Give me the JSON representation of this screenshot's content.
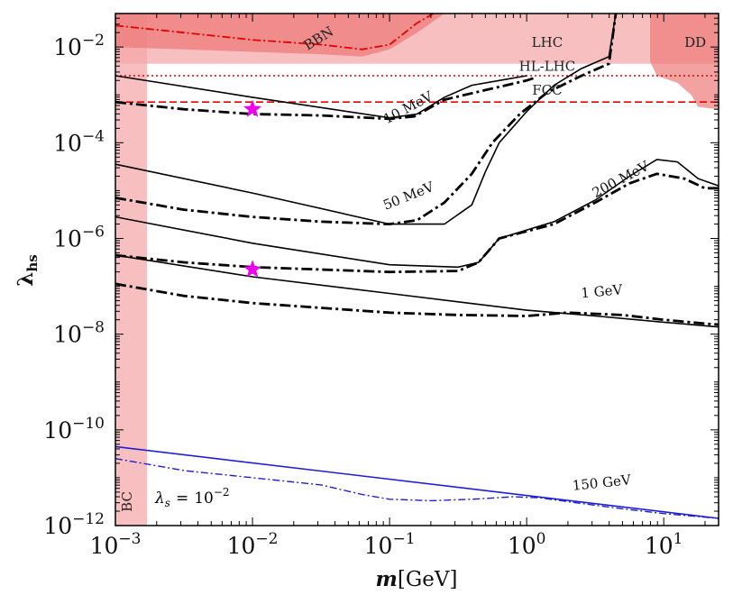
{
  "chart_data": {
    "type": "line",
    "xscale": "log",
    "yscale": "log",
    "xlim_log10": [
      -3,
      1.4
    ],
    "ylim_log10": [
      -12,
      -1.3
    ],
    "xlabel": {
      "symbol": "m",
      "unit": "[GeV]"
    },
    "ylabel": {
      "symbol": "λ",
      "subscript": "hs"
    },
    "x_ticks": [
      {
        "value": -3,
        "mantissa": "10",
        "exponent": "−3"
      },
      {
        "value": -2,
        "mantissa": "10",
        "exponent": "−2"
      },
      {
        "value": -1,
        "mantissa": "10",
        "exponent": "−1"
      },
      {
        "value": 0,
        "mantissa": "10",
        "exponent": "0"
      },
      {
        "value": 1,
        "mantissa": "10",
        "exponent": "1"
      }
    ],
    "y_ticks": [
      {
        "value": -2,
        "mantissa": "10",
        "exponent": "−2"
      },
      {
        "value": -4,
        "mantissa": "10",
        "exponent": "−4"
      },
      {
        "value": -6,
        "mantissa": "10",
        "exponent": "−6"
      },
      {
        "value": -8,
        "mantissa": "10",
        "exponent": "−8"
      },
      {
        "value": -10,
        "mantissa": "10",
        "exponent": "−10"
      },
      {
        "value": -12,
        "mantissa": "10",
        "exponent": "−12"
      }
    ],
    "annotation_lambda_s": {
      "symbol": "λ",
      "subscript": "s",
      "equals": "=",
      "mantissa": "10",
      "exponent": "−2"
    },
    "colors": {
      "region_fill": "#f4a6a6",
      "region_dark": "#ee7b7b",
      "constraint_red": "#e60000",
      "benchmark_black": "#000000",
      "benchmark_blue": "#1f1fd6",
      "marker": "#ee00ee"
    },
    "regions": [
      {
        "name": "LHC",
        "label": "LHC",
        "label_at": [
          0.15,
          -2.0
        ],
        "poly": [
          [
            -3,
            -2.35
          ],
          [
            1.4,
            -2.35
          ],
          [
            1.4,
            -1.3
          ],
          [
            -3,
            -1.3
          ]
        ]
      },
      {
        "name": "BC",
        "label": "BC",
        "label_at": [
          -2.88,
          -11.5
        ],
        "poly": [
          [
            -3,
            -12
          ],
          [
            -2.77,
            -12
          ],
          [
            -2.77,
            -1.3
          ],
          [
            -3,
            -1.3
          ]
        ]
      },
      {
        "name": "BBN",
        "label": "BBN",
        "label_at": [
          -1.5,
          -1.9
        ],
        "poly": [
          [
            -3,
            -1.3
          ],
          [
            -3,
            -2.0
          ],
          [
            -2.5,
            -2.05
          ],
          [
            -2.0,
            -2.1
          ],
          [
            -1.5,
            -2.15
          ],
          [
            -1.2,
            -2.2
          ],
          [
            -1.0,
            -2.05
          ],
          [
            -0.8,
            -1.7
          ],
          [
            -0.6,
            -1.3
          ]
        ]
      },
      {
        "name": "DD",
        "label": "DD",
        "label_at": [
          1.23,
          -2.0
        ],
        "poly": [
          [
            0.9,
            -1.3
          ],
          [
            0.9,
            -2.3
          ],
          [
            0.95,
            -2.6
          ],
          [
            1.1,
            -2.75
          ],
          [
            1.2,
            -3.0
          ],
          [
            1.25,
            -3.25
          ],
          [
            1.4,
            -3.3
          ],
          [
            1.4,
            -1.3
          ]
        ]
      }
    ],
    "reference_lines": [
      {
        "name": "HL-LHC",
        "label": "HL-LHC",
        "y": -2.6,
        "style": "dotted",
        "label_at": [
          0.15,
          -2.5
        ]
      },
      {
        "name": "FCC",
        "label": "FCC",
        "y": -3.15,
        "style": "dashed",
        "label_at": [
          0.15,
          -3.0
        ]
      }
    ],
    "bbn_dashdot": [
      [
        -3,
        -1.55
      ],
      [
        -2.5,
        -1.7
      ],
      [
        -2.0,
        -1.85
      ],
      [
        -1.5,
        -1.95
      ],
      [
        -1.2,
        -2.05
      ],
      [
        -1.0,
        -1.95
      ],
      [
        -0.8,
        -1.5
      ],
      [
        -0.68,
        -1.3
      ]
    ],
    "series": [
      {
        "name": "10 MeV",
        "label": "10 MeV",
        "color": "black",
        "label_at": [
          -0.85,
          -3.35
        ],
        "label_rot": -28,
        "solid": [
          [
            -3,
            -2.6
          ],
          [
            -2,
            -3.05
          ],
          [
            -1,
            -3.48
          ],
          [
            -0.8,
            -3.4
          ],
          [
            -0.6,
            -3.05
          ],
          [
            -0.4,
            -2.8
          ],
          [
            -0.2,
            -2.7
          ],
          [
            0.0,
            -2.6
          ]
        ],
        "dashdot": [
          [
            -3,
            -3.15
          ],
          [
            -2.5,
            -3.3
          ],
          [
            -2,
            -3.4
          ],
          [
            -1.5,
            -3.43
          ],
          [
            -1,
            -3.5
          ],
          [
            -0.82,
            -3.45
          ],
          [
            -0.6,
            -3.1
          ],
          [
            -0.3,
            -2.9
          ],
          [
            0.0,
            -2.7
          ],
          [
            0.05,
            -2.65
          ]
        ]
      },
      {
        "name": "50 MeV",
        "label": "50 MeV",
        "color": "black",
        "label_at": [
          -0.85,
          -5.2
        ],
        "label_rot": -22,
        "solid": [
          [
            -3,
            -4.45
          ],
          [
            -2,
            -5.05
          ],
          [
            -1,
            -5.7
          ],
          [
            -0.6,
            -5.7
          ],
          [
            -0.4,
            -5.3
          ],
          [
            -0.3,
            -4.6
          ],
          [
            -0.2,
            -4.0
          ],
          [
            0.0,
            -3.35
          ],
          [
            0.2,
            -2.8
          ],
          [
            0.4,
            -2.45
          ],
          [
            0.6,
            -2.2
          ],
          [
            0.65,
            -1.3
          ]
        ],
        "dashdot": [
          [
            -3,
            -5.15
          ],
          [
            -2.5,
            -5.4
          ],
          [
            -2,
            -5.55
          ],
          [
            -1.5,
            -5.65
          ],
          [
            -1,
            -5.7
          ],
          [
            -0.8,
            -5.62
          ],
          [
            -0.6,
            -5.25
          ],
          [
            -0.4,
            -4.65
          ],
          [
            -0.25,
            -4.0
          ],
          [
            -0.05,
            -3.4
          ],
          [
            0.15,
            -2.95
          ],
          [
            0.4,
            -2.6
          ],
          [
            0.6,
            -2.35
          ],
          [
            0.65,
            -1.3
          ]
        ]
      },
      {
        "name": "200 MeV",
        "label": "200 MeV",
        "color": "black",
        "label_at": [
          0.7,
          -4.85
        ],
        "label_rot": -28,
        "solid": [
          [
            -3,
            -5.55
          ],
          [
            -2,
            -6.1
          ],
          [
            -1,
            -6.55
          ],
          [
            -0.5,
            -6.6
          ],
          [
            -0.35,
            -6.5
          ],
          [
            -0.2,
            -6.0
          ],
          [
            0.2,
            -5.65
          ],
          [
            0.5,
            -5.2
          ],
          [
            0.75,
            -4.7
          ],
          [
            0.95,
            -4.35
          ],
          [
            1.1,
            -4.4
          ],
          [
            1.25,
            -4.75
          ],
          [
            1.4,
            -4.9
          ]
        ],
        "dashdot": [
          [
            -3,
            -6.35
          ],
          [
            -2.5,
            -6.5
          ],
          [
            -2,
            -6.6
          ],
          [
            -1.5,
            -6.65
          ],
          [
            -1,
            -6.7
          ],
          [
            -0.5,
            -6.68
          ],
          [
            -0.35,
            -6.5
          ],
          [
            -0.2,
            -6.0
          ],
          [
            0.2,
            -5.7
          ],
          [
            0.5,
            -5.25
          ],
          [
            0.75,
            -4.85
          ],
          [
            0.95,
            -4.65
          ],
          [
            1.15,
            -4.75
          ],
          [
            1.3,
            -4.95
          ],
          [
            1.4,
            -4.95
          ]
        ]
      },
      {
        "name": "1 GeV",
        "label": "1 GeV",
        "color": "black",
        "label_at": [
          0.55,
          -7.2
        ],
        "label_rot": -5,
        "solid": [
          [
            -3,
            -6.35
          ],
          [
            -2,
            -6.8
          ],
          [
            -1,
            -7.15
          ],
          [
            0,
            -7.5
          ],
          [
            0.5,
            -7.62
          ],
          [
            1,
            -7.75
          ],
          [
            1.4,
            -7.85
          ]
        ],
        "dashdot": [
          [
            -3,
            -6.95
          ],
          [
            -2.5,
            -7.2
          ],
          [
            -2,
            -7.35
          ],
          [
            -1.5,
            -7.45
          ],
          [
            -1,
            -7.55
          ],
          [
            -0.5,
            -7.6
          ],
          [
            0,
            -7.62
          ],
          [
            0.3,
            -7.55
          ],
          [
            0.7,
            -7.6
          ],
          [
            1.0,
            -7.7
          ],
          [
            1.3,
            -7.78
          ],
          [
            1.4,
            -7.8
          ]
        ]
      },
      {
        "name": "150 GeV",
        "label": "150 GeV",
        "color": "blue",
        "label_at": [
          0.55,
          -11.2
        ],
        "label_rot": -6,
        "solid": [
          [
            -3,
            -10.35
          ],
          [
            1.4,
            -11.85
          ]
        ],
        "dashdot": [
          [
            -3,
            -10.6
          ],
          [
            -2.5,
            -10.85
          ],
          [
            -2,
            -11.0
          ],
          [
            -1.5,
            -11.15
          ],
          [
            -1.2,
            -11.35
          ],
          [
            -1,
            -11.45
          ],
          [
            -0.7,
            -11.48
          ],
          [
            -0.4,
            -11.45
          ],
          [
            -0.1,
            -11.4
          ],
          [
            0.1,
            -11.42
          ],
          [
            0.3,
            -11.5
          ],
          [
            0.7,
            -11.65
          ],
          [
            1.0,
            -11.75
          ],
          [
            1.4,
            -11.85
          ]
        ]
      }
    ],
    "markers": [
      {
        "name": "star-10mev",
        "x": -2.0,
        "y": -3.3
      },
      {
        "name": "star-1gev",
        "x": -2.0,
        "y": -6.65
      }
    ]
  }
}
